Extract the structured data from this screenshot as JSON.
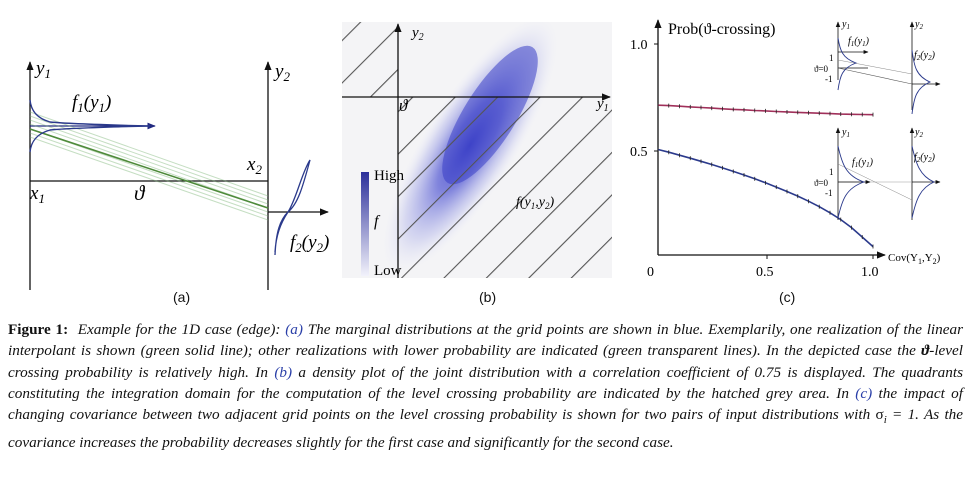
{
  "panels": {
    "a": {
      "label": "(a)",
      "y1": "y",
      "y1_sub": "1",
      "y2": "y",
      "y2_sub": "2",
      "f1": "f",
      "f1_sub": "1",
      "f1_arg": "(y",
      "f1_arg_sub": "1",
      "f1_close": ")",
      "f2": "f",
      "f2_sub": "2",
      "f2_arg": "(y",
      "f2_arg_sub": "2",
      "f2_close": ")",
      "x1": "x",
      "x1_sub": "1",
      "x2": "x",
      "x2_sub": "2",
      "theta": "ϑ"
    },
    "b": {
      "label": "(b)",
      "y1": "y",
      "y1_sub": "1",
      "y2": "y",
      "y2_sub": "2",
      "theta": "ϑ",
      "colorbar_high": "High",
      "colorbar_f": "f",
      "colorbar_low": "Low",
      "density_label": "f(y",
      "density_label_sub1": "1",
      "density_label_mid": ",y",
      "density_label_sub2": "2",
      "density_label_close": ")"
    },
    "c": {
      "label": "(c)",
      "ylabel": "Prob(ϑ-crossing)",
      "xlabel": "Cov(Y",
      "xlabel_sub1": "1",
      "xlabel_mid": ",Y",
      "xlabel_sub2": "2",
      "xlabel_close": ")",
      "yticks": [
        "1.0",
        "0.5",
        "0"
      ],
      "xticks": [
        "0.5",
        "1.0"
      ],
      "inset_top": {
        "y1": "y",
        "y1_sub": "1",
        "y2": "y",
        "y2_sub": "2",
        "f1": "f",
        "f1_sub": "1",
        "f1_arg": "(y",
        "f1_arg_sub": "1",
        "f2": "f",
        "f2_sub": "2",
        "f2_arg": "(y",
        "f2_arg_sub": "2",
        "theta": "ϑ=0",
        "tick_pos": "1",
        "tick_neg": "-1"
      },
      "inset_bottom": {
        "y1": "y",
        "y1_sub": "1",
        "y2": "y",
        "y2_sub": "2",
        "f1": "f",
        "f1_sub": "1",
        "f1_arg": "(y",
        "f1_arg_sub": "1",
        "f2": "f",
        "f2_sub": "2",
        "f2_arg": "(y",
        "f2_arg_sub": "2",
        "theta": "ϑ=0",
        "tick_pos": "1",
        "tick_neg": "-1"
      }
    }
  },
  "chart_data": {
    "type": "line",
    "ylabel": "Prob(ϑ-crossing)",
    "xlabel": "Cov(Y1,Y2)",
    "xlim": [
      0,
      1.0
    ],
    "ylim": [
      0,
      1.0
    ],
    "x": [
      0.0,
      0.05,
      0.1,
      0.15,
      0.2,
      0.25,
      0.3,
      0.35,
      0.4,
      0.45,
      0.5,
      0.55,
      0.6,
      0.65,
      0.7,
      0.75,
      0.8,
      0.85,
      0.9,
      0.95,
      1.0
    ],
    "series": [
      {
        "color": "#a0305a",
        "values": [
          0.71,
          0.708,
          0.705,
          0.702,
          0.699,
          0.696,
          0.693,
          0.69,
          0.688,
          0.685,
          0.683,
          0.68,
          0.678,
          0.676,
          0.674,
          0.672,
          0.67,
          0.668,
          0.667,
          0.666,
          0.665
        ]
      },
      {
        "color": "#2b3a8c",
        "values": [
          0.5,
          0.487,
          0.473,
          0.459,
          0.444,
          0.429,
          0.413,
          0.396,
          0.379,
          0.361,
          0.342,
          0.322,
          0.301,
          0.279,
          0.255,
          0.229,
          0.2,
          0.168,
          0.13,
          0.085,
          0.04
        ]
      }
    ]
  },
  "caption": {
    "label": "Figure 1:",
    "p1": "Example for the 1D case (edge): ",
    "ref_a": "(a)",
    "p2": " The marginal distributions at the grid points are shown in blue. Exemplarily, one realization of the linear interpolant is shown (green solid line); other realizations with lower probability are indicated (green transparent lines). In the depicted case the ",
    "theta": "ϑ",
    "p3": "-level crossing probability is relatively high. In ",
    "ref_b": "(b)",
    "p4": " a density plot of the joint distribution with a correlation coefficient of 0.75 is displayed. The quadrants constituting the integration domain for the computation of the level crossing probability are indicated by the hatched grey area. In ",
    "ref_c": "(c)",
    "p5": " the impact of changing covariance between two adjacent grid points on the level crossing probability is shown for two pairs of input distributions with ",
    "sigma": "σ",
    "sigma_sub": "i",
    "p6": " = 1. As the covariance increases the probability decreases slightly for the first case and significantly for the second case."
  }
}
